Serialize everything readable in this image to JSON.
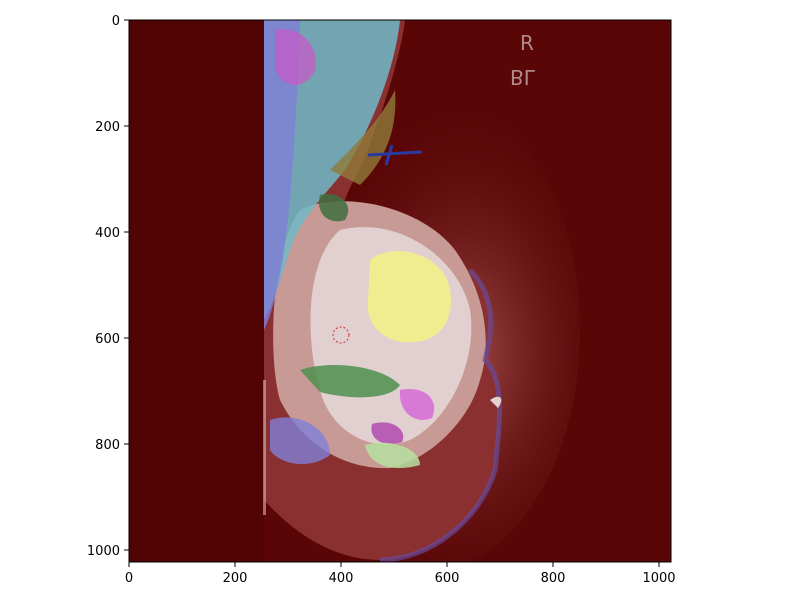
{
  "image": {
    "description_hidden": true,
    "overlay_label_top": "R",
    "overlay_label_bottom": "BL",
    "colors": {
      "background_overlay": "#5a0606",
      "tissue_overlay": "#8a2a28",
      "fatty_region": "#b88c86",
      "dense_core": "#e2cfd0",
      "yellow_region": "#f2f08a",
      "cyan_region": "#6fd3d3",
      "blue_region": "#7f7fd8",
      "magenta_region": "#c75ac7",
      "green_region": "#4f8f4f",
      "purple_edge": "#6a4a9a",
      "olive_edge": "#8f7a3a"
    }
  },
  "axes": {
    "x_ticks": [
      "0",
      "200",
      "400",
      "600",
      "800",
      "1000"
    ],
    "y_ticks": [
      "0",
      "200",
      "400",
      "600",
      "800",
      "1000"
    ],
    "xlim": [
      0,
      1024
    ],
    "ylim": [
      1024,
      0
    ]
  }
}
